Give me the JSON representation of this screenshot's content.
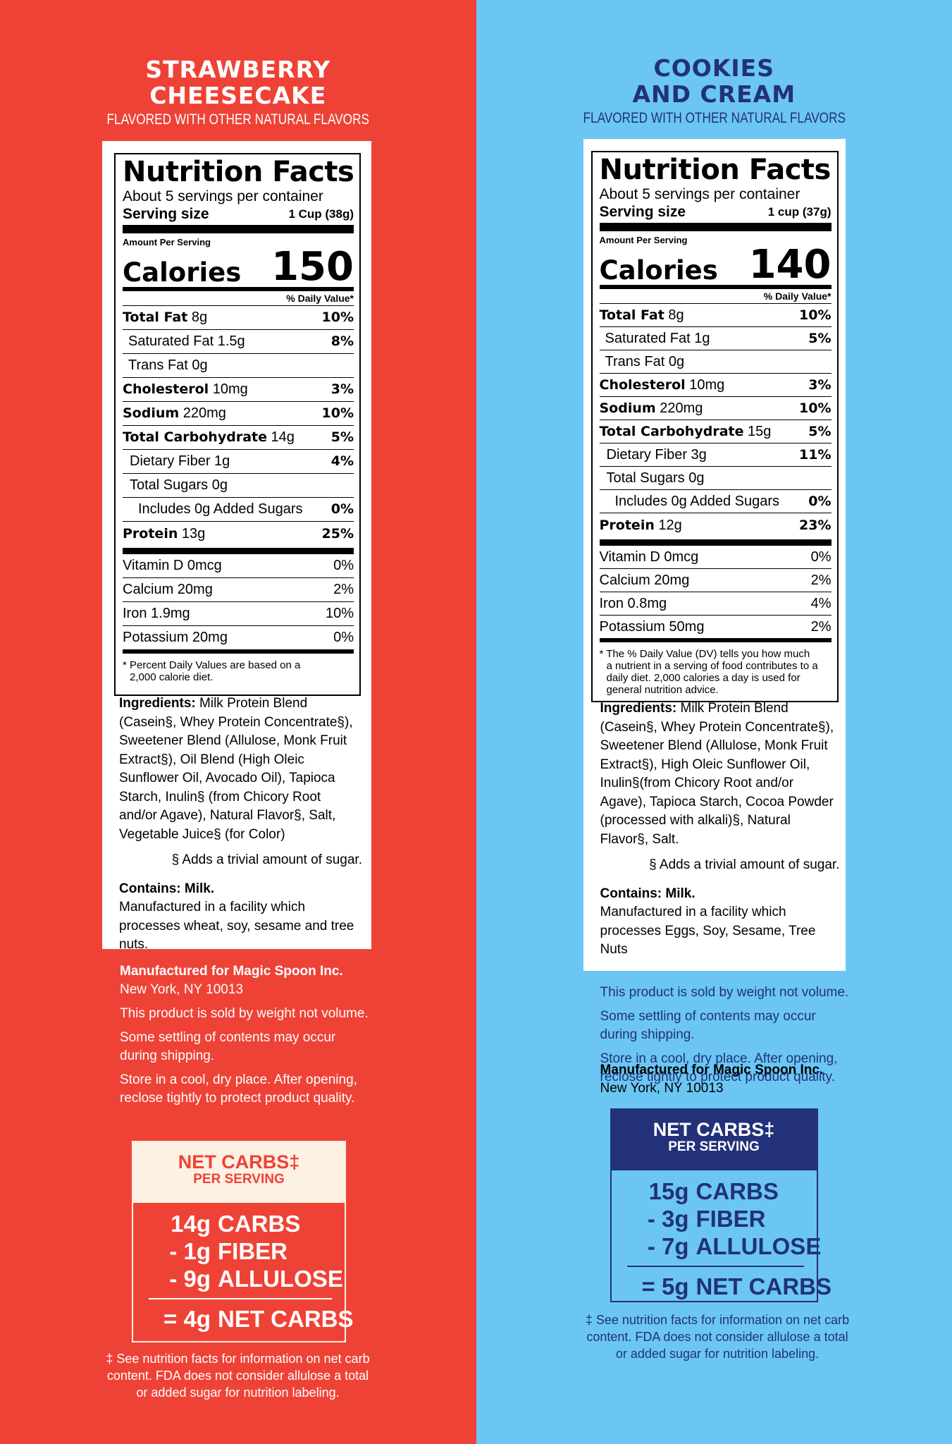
{
  "left": {
    "flavor_line1": "STRAWBERRY",
    "flavor_line2": "CHEESECAKE",
    "flavor_sub": "FLAVORED WITH OTHER NATURAL FLAVORS",
    "nf": {
      "title": "Nutrition Facts",
      "servings": "About 5 servings per container",
      "serving_size_label": "Serving size",
      "serving_size": "1 Cup (38g)",
      "amount_per_serving": "Amount Per Serving",
      "calories_label": "Calories",
      "calories": "150",
      "dv_header": "% Daily Value*",
      "rows": [
        {
          "name": "Total Fat",
          "amt": "8g",
          "pct": "10%"
        },
        {
          "name": "Saturated Fat 1.5g",
          "pct": "8%"
        },
        {
          "name": "Trans Fat 0g",
          "pct": ""
        },
        {
          "name": "Cholesterol",
          "amt": "10mg",
          "pct": "3%"
        },
        {
          "name": "Sodium",
          "amt": "220mg",
          "pct": "10%"
        },
        {
          "name": "Total Carbohydrate",
          "amt": "14g",
          "pct": "5%"
        },
        {
          "name": "Dietary Fiber 1g",
          "pct": "4%"
        },
        {
          "name": "Total Sugars 0g",
          "pct": ""
        },
        {
          "name": "Includes 0g Added Sugars",
          "pct": "0%"
        },
        {
          "name": "Protein",
          "amt": "13g",
          "pct": "25%"
        }
      ],
      "vitamins": [
        {
          "name": "Vitamin D 0mcg",
          "pct": "0%"
        },
        {
          "name": "Calcium 20mg",
          "pct": "2%"
        },
        {
          "name": "Iron 1.9mg",
          "pct": "10%"
        },
        {
          "name": "Potassium 20mg",
          "pct": "0%"
        }
      ],
      "footnote_1": "* Percent Daily Values are based on a",
      "footnote_2": "2,000 calorie diet."
    },
    "ingredients_label": "Ingredients:",
    "ingredients": "Milk Protein Blend (Casein§, Whey Protein Concentrate§), Sweetener Blend (Allulose, Monk Fruit Extract§), Oil Blend (High Oleic Sunflower Oil, Avocado Oil), Tapioca Starch, Inulin§ (from Chicory Root and/or Agave), Natural Flavor§, Salt, Vegetable Juice§ (for Color)",
    "sugar_note": "§ Adds a trivial amount of sugar.",
    "contains": "Contains: Milk.",
    "facility": "Manufactured in a facility which processes wheat, soy, sesame and tree nuts.",
    "mfr_name": "Manufactured for Magic Spoon Inc.",
    "mfr_city": "New York, NY 10013",
    "notes": [
      "This product is sold by weight not volume.",
      "Some settling of contents may occur during shipping.",
      "Store in a cool, dry place. After opening, reclose tightly to protect product quality."
    ],
    "net": {
      "title": "NET CARBS‡",
      "sub": "PER SERVING",
      "lines": [
        {
          "amt": "14g",
          "label": "CARBS"
        },
        {
          "amt": "- 1g",
          "label": "FIBER"
        },
        {
          "amt": "- 9g",
          "label": "ALLULOSE"
        }
      ],
      "total_amt": "= 4g",
      "total_label": "NET CARBS"
    },
    "disclaimer": "‡ See nutrition facts for information on net carb content. FDA does not consider allulose a total or added sugar for nutrition labeling."
  },
  "right": {
    "flavor_line1": "COOKIES",
    "flavor_line2": "AND CREAM",
    "flavor_sub": "FLAVORED WITH OTHER NATURAL FLAVORS",
    "nf": {
      "title": "Nutrition Facts",
      "servings": "About 5 servings per container",
      "serving_size_label": "Serving size",
      "serving_size": "1 cup (37g)",
      "amount_per_serving": "Amount Per Serving",
      "calories_label": "Calories",
      "calories": "140",
      "dv_header": "% Daily Value*",
      "rows": [
        {
          "name": "Total Fat",
          "amt": "8g",
          "pct": "10%"
        },
        {
          "name": "Saturated Fat 1g",
          "pct": "5%"
        },
        {
          "name": "Trans Fat 0g",
          "pct": ""
        },
        {
          "name": "Cholesterol",
          "amt": "10mg",
          "pct": "3%"
        },
        {
          "name": "Sodium",
          "amt": "220mg",
          "pct": "10%"
        },
        {
          "name": "Total Carbohydrate",
          "amt": "15g",
          "pct": "5%"
        },
        {
          "name": "Dietary Fiber 3g",
          "pct": "11%"
        },
        {
          "name": "Total Sugars 0g",
          "pct": ""
        },
        {
          "name": "Includes 0g Added Sugars",
          "pct": "0%"
        },
        {
          "name": "Protein",
          "amt": "12g",
          "pct": "23%"
        }
      ],
      "vitamins": [
        {
          "name": "Vitamin D 0mcg",
          "pct": "0%"
        },
        {
          "name": "Calcium 20mg",
          "pct": "2%"
        },
        {
          "name": "Iron 0.8mg",
          "pct": "4%"
        },
        {
          "name": "Potassium 50mg",
          "pct": "2%"
        }
      ],
      "footnote_1": "* The % Daily Value (DV) tells you how much",
      "footnote_2": "a nutrient in a serving of food contributes to a daily diet. 2,000 calories a day is used for general nutrition advice."
    },
    "ingredients_label": "Ingredients:",
    "ingredients": "Milk Protein Blend (Casein§, Whey Protein Concentrate§), Sweetener Blend (Allulose, Monk Fruit Extract§), High Oleic Sunflower Oil, Inulin§(from Chicory Root and/or Agave), Tapioca Starch, Cocoa Powder (processed with alkali)§, Natural Flavor§, Salt.",
    "sugar_note": "§ Adds a trivial amount of sugar.",
    "contains": "Contains: Milk.",
    "facility": "Manufactured in a facility which processes Eggs, Soy, Sesame, Tree Nuts",
    "mfr_name": "Manufactured for Magic Spoon Inc.",
    "mfr_city": "New York, NY 10013",
    "notes": [
      "This product is sold by weight not volume.",
      "Some settling of contents may occur during shipping.",
      "Store in a cool, dry place. After opening, reclose tightly to protect product quality."
    ],
    "net": {
      "title": "NET CARBS‡",
      "sub": "PER SERVING",
      "lines": [
        {
          "amt": "15g",
          "label": "CARBS"
        },
        {
          "amt": "- 3g",
          "label": "FIBER"
        },
        {
          "amt": "- 7g",
          "label": "ALLULOSE"
        }
      ],
      "total_amt": "= 5g",
      "total_label": "NET CARBS"
    },
    "disclaimer": "‡ See nutrition facts for information on net carb content. FDA does not consider allulose a total or added sugar for nutrition labeling."
  },
  "colors": {
    "left_bg": "#ef4236",
    "right_bg": "#6bc6f3",
    "navy": "#22317a",
    "cream": "#fdf1e3"
  }
}
